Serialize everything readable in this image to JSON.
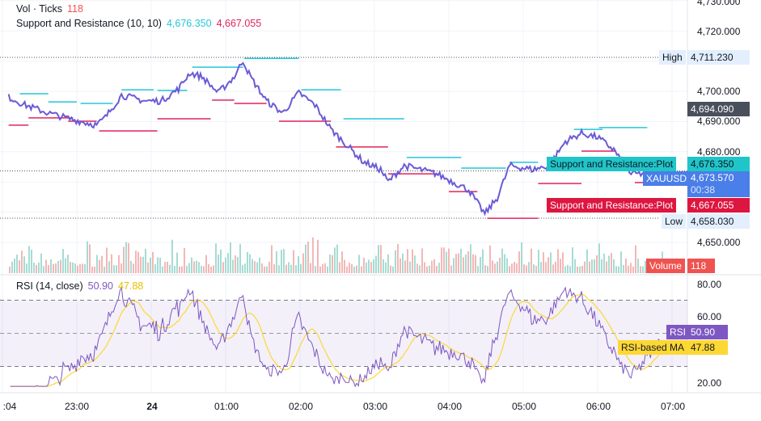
{
  "legend": {
    "vol_label": "Vol · Ticks",
    "vol_value": "118",
    "sr_label": "Support and Resistance (10, 10)",
    "sr_res": "4,676.350",
    "sr_sup": "4,667.055",
    "rsi_label": "RSI (14, close)",
    "rsi_value": "50.90",
    "rsi_ma": "47.88"
  },
  "price_axis": [
    "4,730.000",
    "4,720.000",
    "4,700.000",
    "4,690.000",
    "4,680.000",
    "4,650.000"
  ],
  "tags": {
    "high_label": "High",
    "high_value": "4,711.230",
    "cross_value": "4,694.090",
    "res_label": "Support and Resistance:Plot",
    "res_value": "4,676.350",
    "symbol": "XAUUSD",
    "last_value": "4,673.570",
    "countdown": "00:38",
    "sup_label": "Support and Resistance:Plot",
    "sup_value": "4,667.055",
    "low_label": "Low",
    "low_value": "4,658.030",
    "volume_label": "Volume",
    "volume_value": "118",
    "rsi_label": "RSI",
    "rsi_value": "50.90",
    "ma_label": "RSI-based MA",
    "ma_value": "47.88"
  },
  "rsi_axis": [
    "80.00",
    "60.00",
    "20.00"
  ],
  "time_axis": [
    ":04",
    "23:00",
    "24",
    "01:00",
    "02:00",
    "03:00",
    "04:00",
    "05:00",
    "06:00",
    "07:00"
  ],
  "colors": {
    "price": "#6a5bd6",
    "res": "#26c6da",
    "sup": "#e0245e",
    "rsi": "#7e57c2",
    "ma": "#fdd835",
    "vol_up": "#8fd3c8",
    "vol_down": "#f0a5a5"
  },
  "chart_data": {
    "type": "line",
    "x_unit": "minutes from 23:00",
    "price": [
      [
        -55,
        4698.1
      ],
      [
        -42,
        4695.5
      ],
      [
        -23,
        4692.8
      ],
      [
        -3,
        4690.6
      ],
      [
        16,
        4688.8
      ],
      [
        23,
        4691.4
      ],
      [
        36,
        4698.7
      ],
      [
        55,
        4696.8
      ],
      [
        68,
        4696.8
      ],
      [
        82,
        4700.8
      ],
      [
        91,
        4706.1
      ],
      [
        101,
        4704.8
      ],
      [
        114,
        4699.5
      ],
      [
        127,
        4704.8
      ],
      [
        134,
        4710.2
      ],
      [
        140,
        4704.8
      ],
      [
        153,
        4696.8
      ],
      [
        166,
        4692.8
      ],
      [
        179,
        4699.5
      ],
      [
        192,
        4695.5
      ],
      [
        205,
        4687.4
      ],
      [
        218,
        4682.1
      ],
      [
        231,
        4676.7
      ],
      [
        245,
        4674.1
      ],
      [
        251,
        4670.1
      ],
      [
        264,
        4675.4
      ],
      [
        277,
        4674.1
      ],
      [
        290,
        4672.7
      ],
      [
        303,
        4670.1
      ],
      [
        316,
        4667.4
      ],
      [
        329,
        4659.4
      ],
      [
        339,
        4664.7
      ],
      [
        349,
        4675.4
      ],
      [
        368,
        4674.1
      ],
      [
        381,
        4675.4
      ],
      [
        394,
        4683.4
      ],
      [
        407,
        4686.1
      ],
      [
        420,
        4684.8
      ],
      [
        433,
        4680.7
      ],
      [
        447,
        4672.7
      ],
      [
        460,
        4672.7
      ],
      [
        473,
        4673.5
      ]
    ],
    "resistance": [
      [
        -46,
        -23,
        4699.2
      ],
      [
        -23,
        0,
        4696.5
      ],
      [
        3,
        29,
        4696.0
      ],
      [
        36,
        62,
        4700.5
      ],
      [
        65,
        89,
        4700.3
      ],
      [
        93,
        134,
        4708.0
      ],
      [
        135,
        179,
        4710.9
      ],
      [
        181,
        213,
        4700.5
      ],
      [
        215,
        264,
        4690.9
      ],
      [
        266,
        310,
        4678.1
      ],
      [
        310,
        346,
        4674.6
      ],
      [
        349,
        372,
        4676.5
      ],
      [
        401,
        424,
        4687.4
      ],
      [
        421,
        460,
        4688.0
      ]
    ],
    "support": [
      [
        -55,
        -39,
        4688.8
      ],
      [
        -39,
        -3,
        4691.2
      ],
      [
        -7,
        16,
        4690.1
      ],
      [
        18,
        65,
        4686.9
      ],
      [
        65,
        108,
        4690.9
      ],
      [
        109,
        127,
        4697.1
      ],
      [
        127,
        153,
        4696.0
      ],
      [
        163,
        205,
        4690.1
      ],
      [
        209,
        251,
        4681.6
      ],
      [
        251,
        290,
        4672.7
      ],
      [
        300,
        323,
        4666.8
      ],
      [
        331,
        372,
        4658.0
      ],
      [
        372,
        407,
        4669.5
      ],
      [
        407,
        434,
        4680.2
      ],
      [
        450,
        460,
        4669.8
      ]
    ],
    "high": 4711.23,
    "low": 4658.03,
    "last": 4673.57,
    "rsi_bands": [
      30,
      50,
      70
    ]
  }
}
